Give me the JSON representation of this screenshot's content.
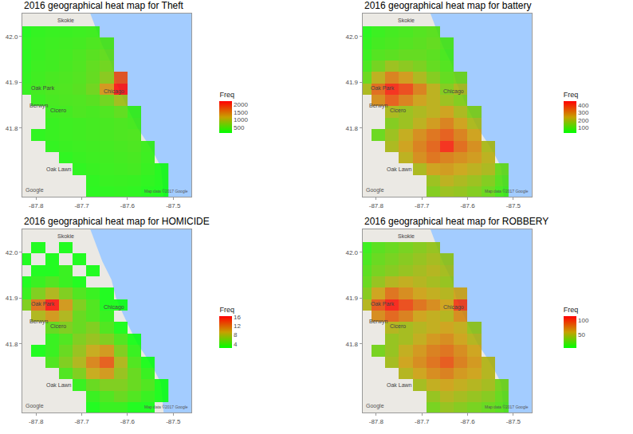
{
  "chart_data": [
    {
      "type": "heatmap",
      "title": "2016 geographical heat map for Theft",
      "x": [
        -87.825,
        -87.795,
        -87.765,
        -87.735,
        -87.705,
        -87.675,
        -87.645,
        -87.615,
        -87.585,
        -87.555,
        -87.525
      ],
      "y": [
        42.035,
        42.01,
        41.985,
        41.96,
        41.935,
        41.91,
        41.885,
        41.86,
        41.835,
        41.81,
        41.785,
        41.76,
        41.735,
        41.71,
        41.685,
        41.66
      ],
      "z": [
        [
          null,
          null,
          null,
          null,
          null,
          null,
          null,
          null,
          null,
          null,
          null
        ],
        [
          150,
          220,
          250,
          260,
          280,
          300,
          null,
          null,
          null,
          null,
          null
        ],
        [
          200,
          250,
          280,
          300,
          320,
          380,
          420,
          null,
          null,
          null,
          null
        ],
        [
          180,
          260,
          300,
          320,
          380,
          450,
          520,
          null,
          null,
          null,
          null
        ],
        [
          200,
          280,
          300,
          350,
          400,
          500,
          600,
          null,
          null,
          null,
          null
        ],
        [
          220,
          300,
          350,
          380,
          420,
          520,
          750,
          1800,
          null,
          null,
          null
        ],
        [
          250,
          320,
          380,
          400,
          450,
          600,
          1300,
          2200,
          null,
          null,
          null
        ],
        [
          null,
          280,
          350,
          380,
          400,
          450,
          600,
          900,
          null,
          null,
          null
        ],
        [
          null,
          null,
          300,
          320,
          380,
          350,
          400,
          500,
          300,
          null,
          null
        ],
        [
          null,
          null,
          250,
          280,
          300,
          320,
          350,
          380,
          350,
          null,
          null
        ],
        [
          null,
          200,
          250,
          280,
          300,
          320,
          350,
          380,
          400,
          null,
          null
        ],
        [
          null,
          null,
          220,
          260,
          280,
          300,
          320,
          350,
          380,
          300,
          null
        ],
        [
          null,
          null,
          null,
          200,
          250,
          280,
          300,
          320,
          350,
          280,
          null
        ],
        [
          null,
          null,
          null,
          null,
          200,
          250,
          280,
          300,
          320,
          250,
          150
        ],
        [
          null,
          null,
          null,
          null,
          null,
          200,
          250,
          260,
          240,
          200,
          150
        ],
        [
          null,
          null,
          null,
          null,
          null,
          180,
          200,
          220,
          200,
          150,
          120
        ]
      ],
      "xlim": [
        -87.83,
        -87.46
      ],
      "ylim": [
        41.65,
        42.05
      ],
      "xticks": [
        -87.8,
        -87.7,
        -87.6,
        -87.5
      ],
      "yticks": [
        41.8,
        41.9,
        {
          "value": 42,
          "label": "42.0"
        }
      ],
      "colors": [
        "#00ff00",
        "#c8a000",
        "#ff0000"
      ],
      "colorbar_title": "Freq",
      "colorbar_range": [
        110,
        2220
      ],
      "colorbar_ticks": [
        500,
        1000,
        1500,
        2000
      ]
    },
    {
      "type": "heatmap",
      "title": "2016 geographical heat map for battery",
      "x": [
        -87.825,
        -87.795,
        -87.765,
        -87.735,
        -87.705,
        -87.675,
        -87.645,
        -87.615,
        -87.585,
        -87.555,
        -87.525
      ],
      "y": [
        42.035,
        42.01,
        41.985,
        41.96,
        41.935,
        41.91,
        41.885,
        41.86,
        41.835,
        41.81,
        41.785,
        41.76,
        41.735,
        41.71,
        41.685,
        41.66
      ],
      "z": [
        [
          null,
          null,
          null,
          null,
          null,
          null,
          null,
          null,
          null,
          null,
          null
        ],
        [
          40,
          60,
          70,
          80,
          90,
          100,
          null,
          null,
          null,
          null,
          null
        ],
        [
          50,
          70,
          80,
          90,
          100,
          110,
          90,
          null,
          null,
          null,
          null
        ],
        [
          60,
          90,
          100,
          110,
          110,
          100,
          80,
          null,
          null,
          null,
          null
        ],
        [
          80,
          130,
          180,
          160,
          140,
          110,
          90,
          null,
          null,
          null,
          null
        ],
        [
          120,
          220,
          300,
          260,
          200,
          150,
          110,
          130,
          null,
          null,
          null
        ],
        [
          200,
          330,
          420,
          380,
          300,
          220,
          150,
          200,
          null,
          null,
          null
        ],
        [
          null,
          280,
          350,
          300,
          250,
          220,
          180,
          150,
          null,
          null,
          null
        ],
        [
          null,
          null,
          200,
          180,
          200,
          220,
          250,
          200,
          150,
          null,
          null
        ],
        [
          null,
          null,
          150,
          180,
          220,
          260,
          300,
          250,
          200,
          null,
          null
        ],
        [
          null,
          120,
          180,
          230,
          280,
          320,
          350,
          300,
          250,
          null,
          null
        ],
        [
          null,
          null,
          200,
          250,
          300,
          340,
          420,
          330,
          280,
          200,
          null
        ],
        [
          null,
          null,
          null,
          220,
          280,
          320,
          300,
          280,
          260,
          220,
          null
        ],
        [
          null,
          null,
          null,
          null,
          200,
          250,
          260,
          240,
          220,
          200,
          120
        ],
        [
          null,
          null,
          null,
          null,
          null,
          180,
          220,
          200,
          180,
          150,
          100
        ],
        [
          null,
          null,
          null,
          null,
          null,
          150,
          180,
          170,
          150,
          120,
          80
        ]
      ],
      "xlim": [
        -87.83,
        -87.46
      ],
      "ylim": [
        41.65,
        42.05
      ],
      "xticks": [
        -87.8,
        -87.7,
        -87.6,
        -87.5
      ],
      "yticks": [
        41.8,
        41.9,
        {
          "value": 42,
          "label": "42.0"
        }
      ],
      "colors": [
        "#00ff00",
        "#c8a000",
        "#ff0000"
      ],
      "colorbar_title": "Freq",
      "colorbar_range": [
        28,
        450
      ],
      "colorbar_ticks": [
        100,
        200,
        300,
        400
      ]
    },
    {
      "type": "heatmap",
      "title": "2016 geographical heat map for HOMICIDE",
      "x": [
        -87.825,
        -87.795,
        -87.765,
        -87.735,
        -87.705,
        -87.675,
        -87.645,
        -87.615,
        -87.585,
        -87.555,
        -87.525
      ],
      "y": [
        42.035,
        42.01,
        41.985,
        41.96,
        41.935,
        41.91,
        41.885,
        41.86,
        41.835,
        41.81,
        41.785,
        41.76,
        41.735,
        41.71,
        41.685,
        41.66
      ],
      "z": [
        [
          null,
          null,
          null,
          null,
          null,
          null,
          null,
          null,
          null,
          null,
          null
        ],
        [
          null,
          2,
          null,
          2,
          null,
          null,
          null,
          null,
          null,
          null,
          null
        ],
        [
          2,
          null,
          2,
          null,
          2,
          null,
          null,
          null,
          null,
          null,
          null
        ],
        [
          null,
          2,
          2,
          3,
          null,
          2,
          null,
          null,
          null,
          null,
          null
        ],
        [
          2,
          3,
          4,
          3,
          2,
          null,
          null,
          null,
          null,
          null,
          null
        ],
        [
          3,
          6,
          8,
          6,
          4,
          3,
          2,
          null,
          null,
          null,
          null
        ],
        [
          6,
          12,
          16,
          10,
          6,
          4,
          2,
          2,
          null,
          null,
          null
        ],
        [
          null,
          8,
          10,
          8,
          5,
          4,
          3,
          null,
          null,
          null,
          null
        ],
        [
          null,
          null,
          5,
          6,
          5,
          6,
          4,
          2,
          null,
          null,
          null
        ],
        [
          null,
          null,
          3,
          4,
          6,
          7,
          6,
          4,
          2,
          null,
          null
        ],
        [
          null,
          2,
          3,
          5,
          7,
          9,
          10,
          6,
          3,
          null,
          null
        ],
        [
          null,
          null,
          4,
          6,
          8,
          11,
          13,
          8,
          4,
          2,
          null
        ],
        [
          null,
          null,
          null,
          4,
          6,
          9,
          10,
          7,
          5,
          3,
          null
        ],
        [
          null,
          null,
          null,
          null,
          3,
          5,
          6,
          6,
          5,
          4,
          2
        ],
        [
          null,
          null,
          null,
          null,
          null,
          3,
          4,
          5,
          4,
          3,
          2
        ],
        [
          null,
          null,
          null,
          null,
          null,
          2,
          3,
          3,
          2,
          2,
          null
        ]
      ],
      "xlim": [
        -87.83,
        -87.46
      ],
      "ylim": [
        41.65,
        42.05
      ],
      "xticks": [
        -87.8,
        -87.7,
        -87.6,
        -87.5
      ],
      "yticks": [
        41.8,
        41.9,
        {
          "value": 42,
          "label": "42.0"
        }
      ],
      "colors": [
        "#00ff00",
        "#c8a000",
        "#ff0000"
      ],
      "colorbar_title": "Freq",
      "colorbar_range": [
        2,
        16.4
      ],
      "colorbar_ticks": [
        4,
        8,
        12,
        16
      ]
    },
    {
      "type": "heatmap",
      "title": "2016 geographical heat map for ROBBERY",
      "x": [
        -87.825,
        -87.795,
        -87.765,
        -87.735,
        -87.705,
        -87.675,
        -87.645,
        -87.615,
        -87.585,
        -87.555,
        -87.525
      ],
      "y": [
        42.035,
        42.01,
        41.985,
        41.96,
        41.935,
        41.91,
        41.885,
        41.86,
        41.835,
        41.81,
        41.785,
        41.76,
        41.735,
        41.71,
        41.685,
        41.66
      ],
      "z": [
        [
          null,
          null,
          null,
          null,
          null,
          null,
          null,
          null,
          null,
          null,
          null
        ],
        [
          10,
          20,
          25,
          30,
          35,
          40,
          null,
          null,
          null,
          null,
          null
        ],
        [
          15,
          25,
          30,
          35,
          40,
          45,
          40,
          null,
          null,
          null,
          null
        ],
        [
          20,
          30,
          35,
          40,
          45,
          50,
          45,
          null,
          null,
          null,
          null
        ],
        [
          25,
          40,
          50,
          55,
          50,
          45,
          40,
          null,
          null,
          null,
          null
        ],
        [
          35,
          60,
          80,
          70,
          60,
          55,
          50,
          60,
          null,
          null,
          null
        ],
        [
          50,
          90,
          110,
          95,
          80,
          70,
          60,
          100,
          null,
          null,
          null
        ],
        [
          null,
          70,
          85,
          75,
          60,
          55,
          50,
          70,
          null,
          null,
          null
        ],
        [
          null,
          null,
          50,
          45,
          50,
          55,
          60,
          55,
          40,
          null,
          null
        ],
        [
          null,
          null,
          40,
          45,
          55,
          65,
          70,
          60,
          50,
          null,
          null
        ],
        [
          null,
          30,
          40,
          55,
          65,
          75,
          80,
          70,
          60,
          null,
          null
        ],
        [
          null,
          null,
          45,
          60,
          70,
          80,
          90,
          75,
          65,
          50,
          null
        ],
        [
          null,
          null,
          null,
          50,
          60,
          70,
          75,
          65,
          60,
          50,
          null
        ],
        [
          null,
          null,
          null,
          null,
          45,
          55,
          60,
          55,
          50,
          45,
          30
        ],
        [
          null,
          null,
          null,
          null,
          null,
          40,
          50,
          45,
          40,
          35,
          25
        ],
        [
          null,
          null,
          null,
          null,
          null,
          30,
          40,
          35,
          30,
          25,
          20
        ]
      ],
      "xlim": [
        -87.83,
        -87.46
      ],
      "ylim": [
        41.65,
        42.05
      ],
      "xticks": [
        -87.8,
        -87.7,
        -87.6,
        -87.5
      ],
      "yticks": [
        41.8,
        41.9,
        {
          "value": 42,
          "label": "42.0"
        }
      ],
      "colors": [
        "#00ff00",
        "#c8a000",
        "#ff0000"
      ],
      "colorbar_title": "Freq",
      "colorbar_range": [
        1,
        115
      ],
      "colorbar_ticks": [
        50,
        100
      ]
    }
  ],
  "map_labels": [
    {
      "name": "Skokie",
      "lon": -87.735,
      "lat": 42.035
    },
    {
      "name": "Chicago",
      "lon": -87.63,
      "lat": 41.88
    },
    {
      "name": "Oak Park",
      "lon": -87.785,
      "lat": 41.888
    },
    {
      "name": "Berwyn",
      "lon": -87.795,
      "lat": 41.848
    },
    {
      "name": "Cicero",
      "lon": -87.752,
      "lat": 41.838
    },
    {
      "name": "Oak Lawn",
      "lon": -87.75,
      "lat": 41.71
    }
  ],
  "map_logo": "Google",
  "map_attribution": "Map data ©2017 Google"
}
